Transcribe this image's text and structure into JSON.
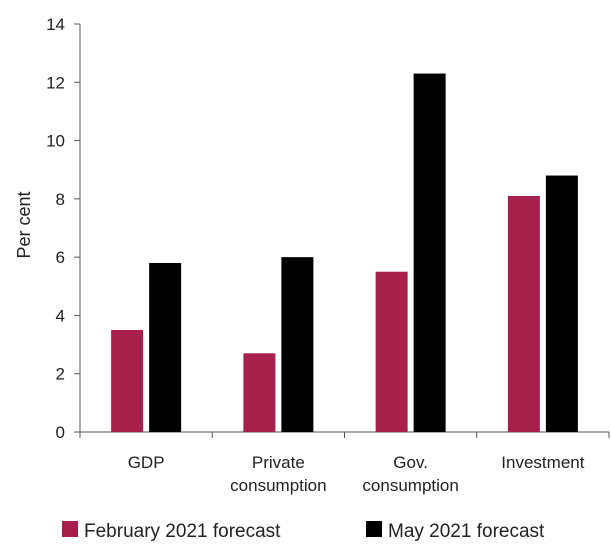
{
  "chart_data": {
    "type": "bar",
    "title": "",
    "xlabel": "",
    "ylabel": "Per cent",
    "ylim": [
      0,
      14
    ],
    "yticks": [
      0,
      2,
      4,
      6,
      8,
      10,
      12,
      14
    ],
    "grid": false,
    "legend_position": "bottom",
    "categories": [
      [
        "GDP"
      ],
      [
        "Private",
        "consumption"
      ],
      [
        "Gov.",
        "consumption"
      ],
      [
        "Investment"
      ]
    ],
    "series": [
      {
        "name": "February 2021 forecast",
        "color": "#A6204B",
        "values": [
          3.5,
          2.7,
          5.5,
          8.1
        ]
      },
      {
        "name": "May 2021 forecast",
        "color": "#000000",
        "values": [
          5.8,
          6.0,
          12.3,
          8.8
        ]
      }
    ]
  }
}
